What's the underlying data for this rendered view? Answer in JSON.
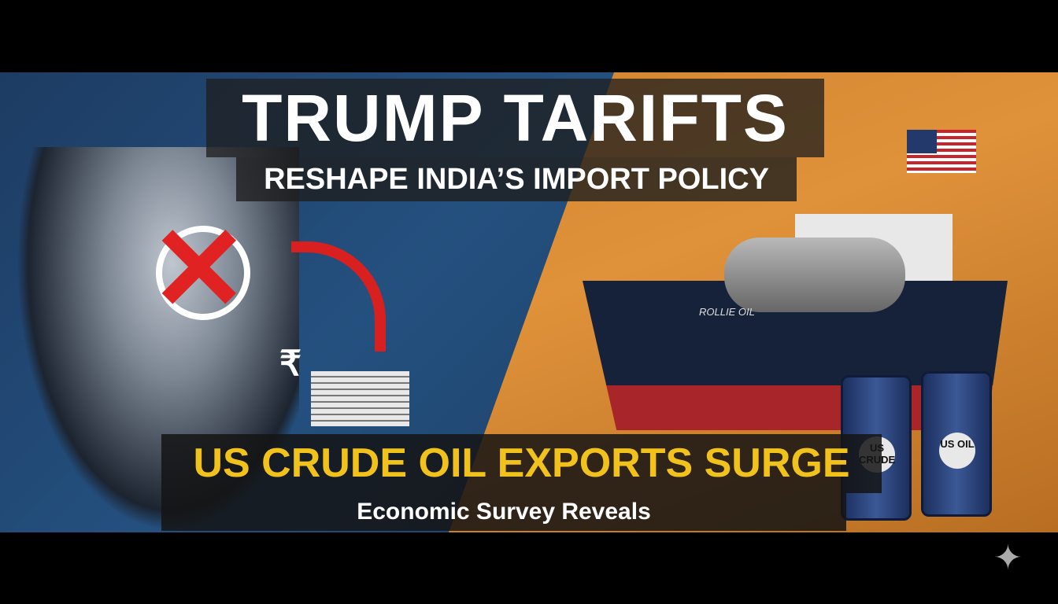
{
  "headline": {
    "line1": "TRUMP TARIFTS",
    "line2": "RESHAPE INDIA’S IMPORT POLICY"
  },
  "banner": {
    "line1": "US CRUDE OIL EXPORTS SURGE",
    "line2": "Economic Survey Reveals"
  },
  "ship": {
    "name": "ROLLIE OIL"
  },
  "barrels": [
    {
      "label": "US CRUDE"
    },
    {
      "label": "US OIL"
    }
  ],
  "symbols": {
    "currency": "₹",
    "corner": "✦"
  },
  "colors": {
    "left_bg": "#24507f",
    "right_bg": "#e0923a",
    "accent_yellow": "#f2c21c",
    "cross_red": "#e02222"
  }
}
